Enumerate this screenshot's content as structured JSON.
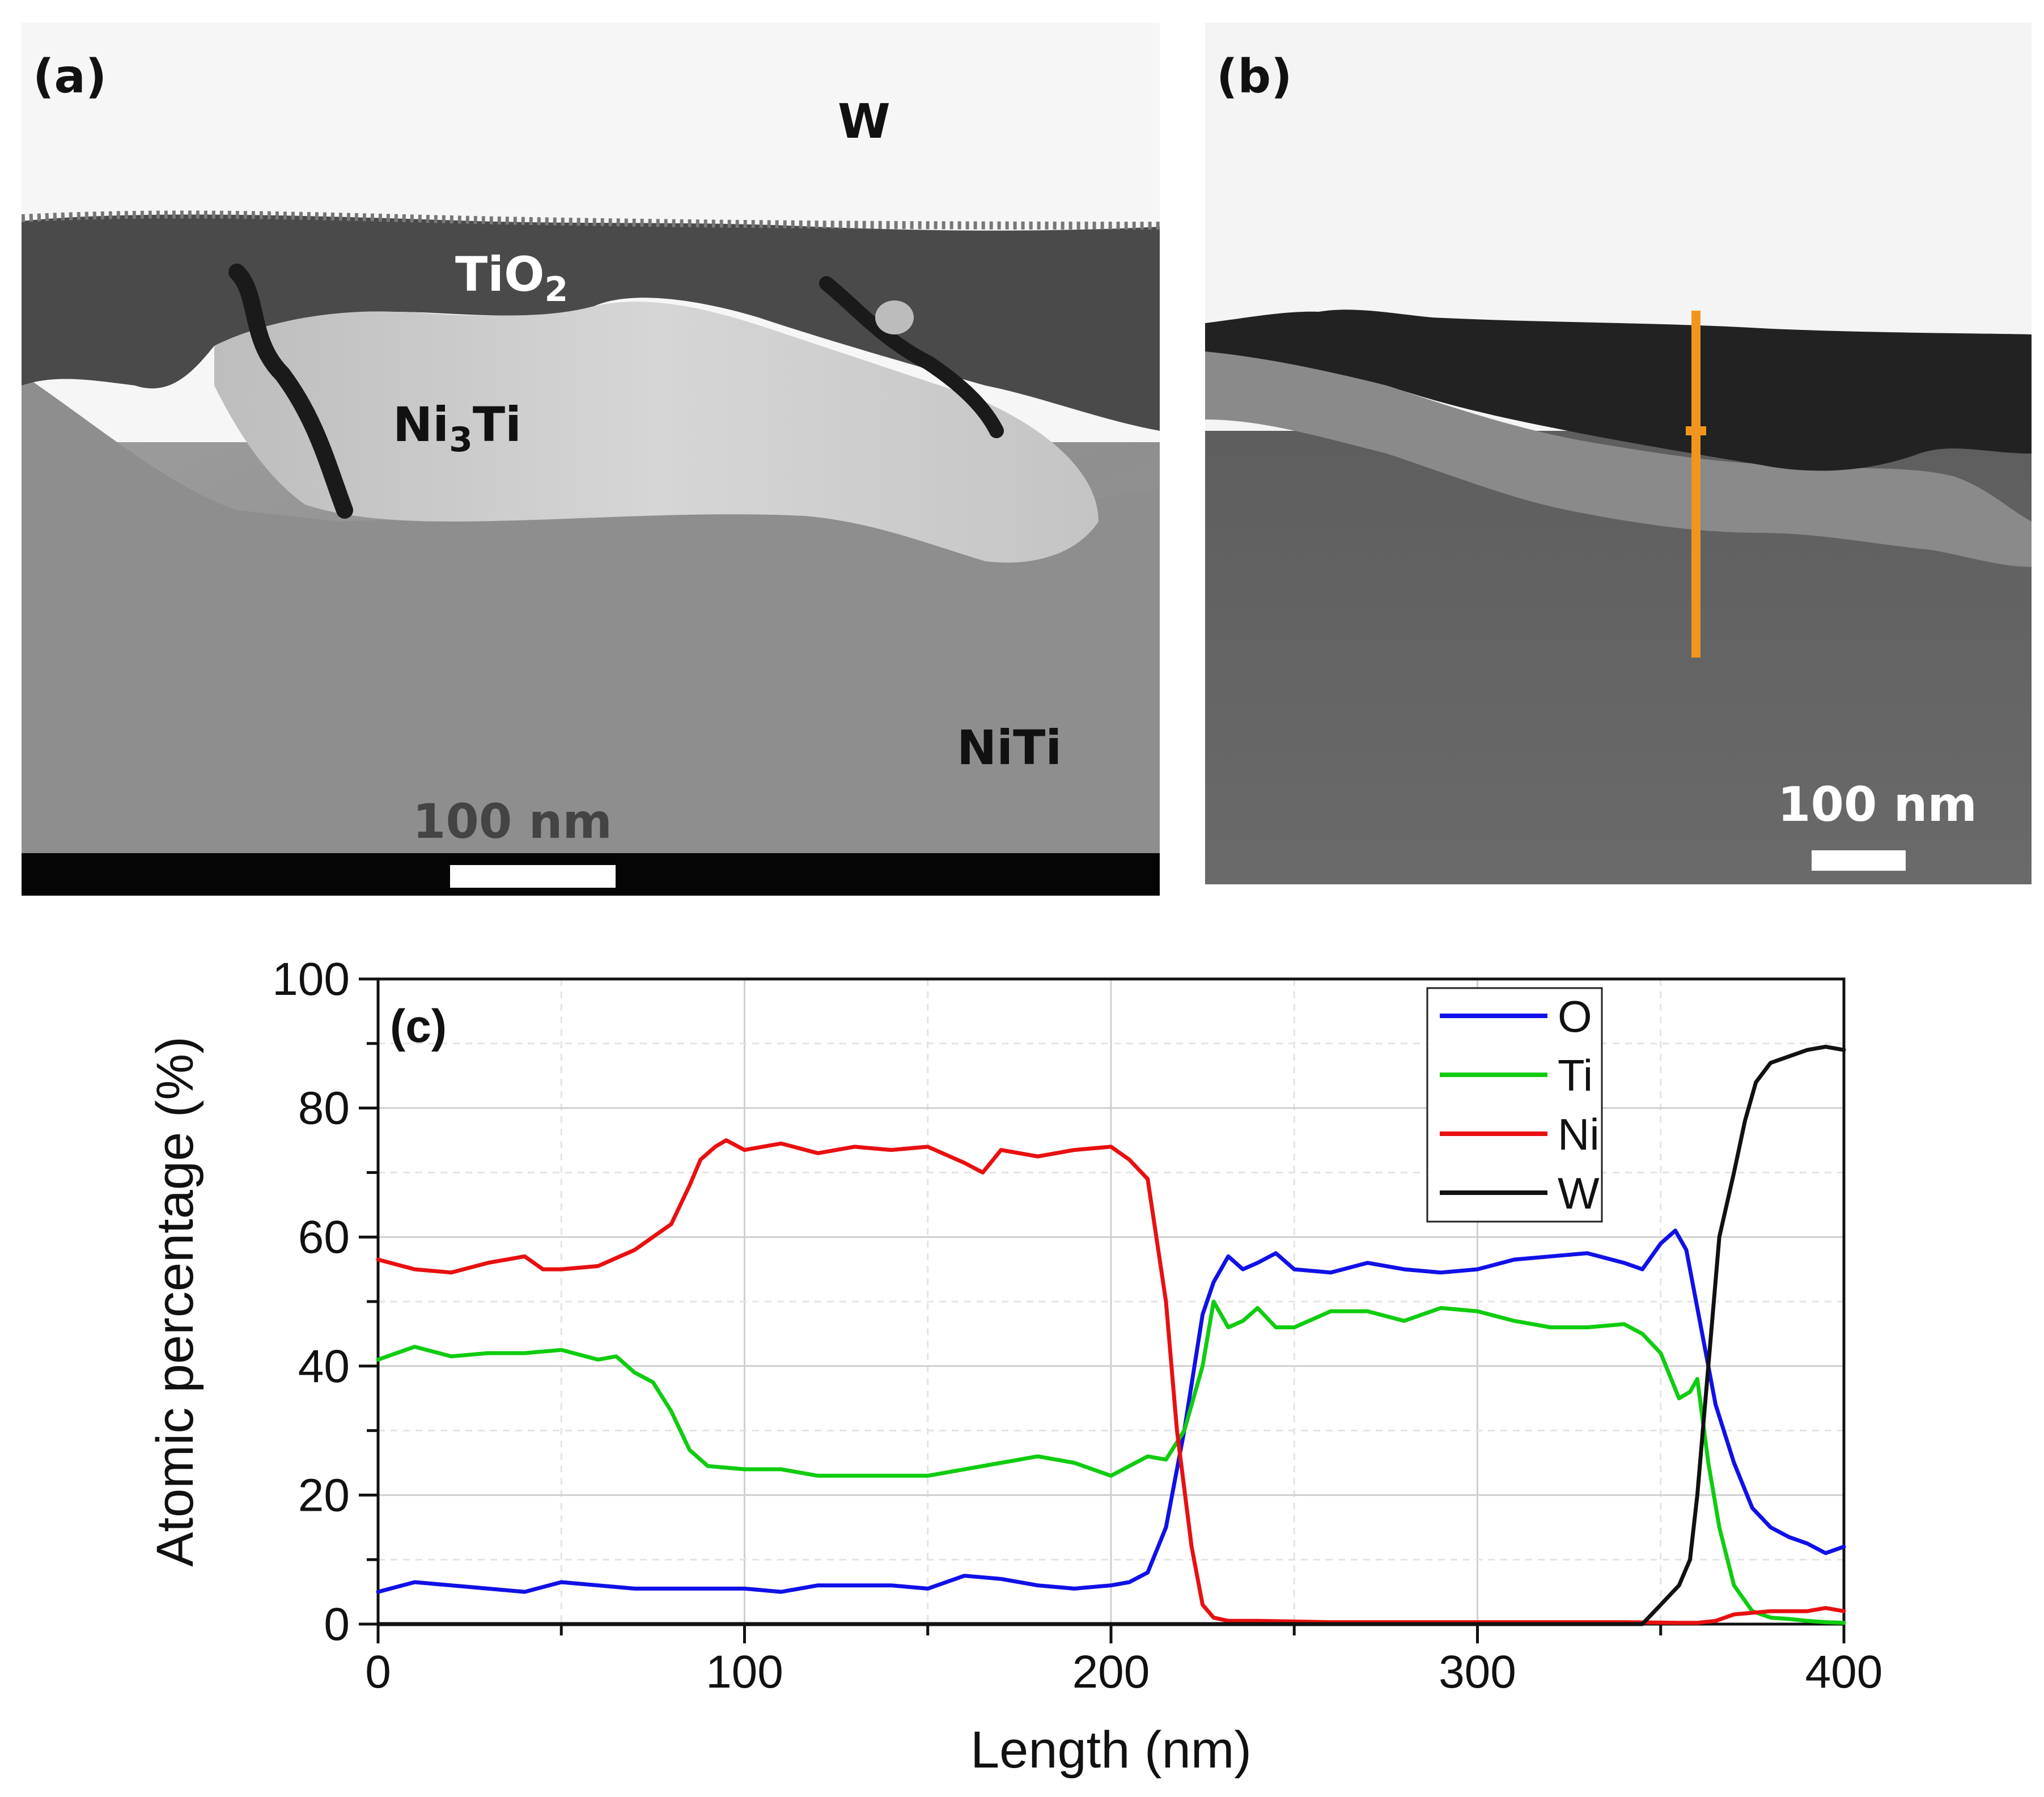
{
  "panel_a": {
    "label": "(a)",
    "layer_w": "W",
    "layer_tio2_main": "TiO",
    "layer_tio2_sub": "2",
    "layer_ni3ti_pre": "Ni",
    "layer_ni3ti_sub": "3",
    "layer_ni3ti_post": "Ti",
    "substrate": "NiTi",
    "scale_label": "100 nm"
  },
  "panel_b": {
    "label": "(b)",
    "scale_label": "100 nm",
    "line_color": "#f0961e"
  },
  "chart_data": {
    "type": "line",
    "panel_label": "(c)",
    "xlabel": "Length (nm)",
    "ylabel": "Atomic percentage (%)",
    "xlim": [
      0,
      400
    ],
    "ylim": [
      0,
      100
    ],
    "xticks": [
      0,
      100,
      200,
      300,
      400
    ],
    "yticks": [
      0,
      20,
      40,
      60,
      80,
      100
    ],
    "grid": true,
    "legend_position": "top-right",
    "series": [
      {
        "name": "O",
        "color": "#1010e8",
        "x": [
          0,
          10,
          20,
          30,
          40,
          50,
          60,
          70,
          80,
          90,
          100,
          110,
          120,
          130,
          140,
          150,
          160,
          170,
          180,
          190,
          200,
          205,
          210,
          215,
          220,
          225,
          228,
          232,
          236,
          240,
          245,
          250,
          260,
          270,
          280,
          290,
          300,
          310,
          320,
          330,
          340,
          345,
          350,
          354,
          357,
          360,
          365,
          370,
          375,
          380,
          385,
          390,
          395,
          400
        ],
        "y": [
          5,
          6.5,
          6,
          5.5,
          5,
          6.5,
          6,
          5.5,
          5.5,
          5.5,
          5.5,
          5,
          6,
          6,
          6,
          5.5,
          7.5,
          7,
          6,
          5.5,
          6,
          6.5,
          8,
          15,
          30,
          48,
          53,
          57,
          55,
          56,
          57.5,
          55,
          54.5,
          56,
          55,
          54.5,
          55,
          56.5,
          57,
          57.5,
          56,
          55,
          59,
          61,
          58,
          49,
          34,
          25,
          18,
          15,
          13.5,
          12.5,
          11,
          12
        ]
      },
      {
        "name": "Ti",
        "color": "#10cc10",
        "x": [
          0,
          10,
          20,
          30,
          40,
          50,
          60,
          65,
          70,
          75,
          80,
          85,
          90,
          100,
          110,
          120,
          130,
          140,
          150,
          160,
          170,
          180,
          190,
          200,
          205,
          210,
          215,
          220,
          225,
          228,
          232,
          236,
          240,
          245,
          250,
          260,
          270,
          280,
          290,
          300,
          310,
          320,
          330,
          340,
          345,
          350,
          355,
          358,
          360,
          363,
          366,
          370,
          375,
          380,
          385,
          390,
          395,
          400
        ],
        "y": [
          41,
          43,
          41.5,
          42,
          42,
          42.5,
          41,
          41.5,
          39,
          37.5,
          33,
          27,
          24.5,
          24,
          24,
          23,
          23,
          23,
          23,
          24,
          25,
          26,
          25,
          23,
          24.5,
          26,
          25.5,
          30,
          40,
          50,
          46,
          47,
          49,
          46,
          46,
          48.5,
          48.5,
          47,
          49,
          48.5,
          47,
          46,
          46,
          46.5,
          45,
          42,
          35,
          36,
          38,
          25,
          15,
          6,
          2,
          1,
          0.8,
          0.5,
          0.3,
          0.2
        ]
      },
      {
        "name": "Ni",
        "color": "#e81010",
        "x": [
          0,
          10,
          20,
          30,
          40,
          45,
          50,
          60,
          70,
          80,
          85,
          88,
          92,
          95,
          100,
          110,
          120,
          130,
          140,
          150,
          160,
          165,
          170,
          180,
          190,
          200,
          205,
          210,
          215,
          218,
          222,
          225,
          228,
          232,
          240,
          260,
          280,
          300,
          320,
          340,
          355,
          360,
          365,
          370,
          380,
          390,
          395,
          400
        ],
        "y": [
          56.5,
          55,
          54.5,
          56,
          57,
          55,
          55,
          55.5,
          58,
          62,
          68,
          72,
          74,
          75,
          73.5,
          74.5,
          73,
          74,
          73.5,
          74,
          71.5,
          70,
          73.5,
          72.5,
          73.5,
          74,
          72,
          69,
          50,
          30,
          12,
          3,
          1,
          0.5,
          0.5,
          0.3,
          0.3,
          0.3,
          0.3,
          0.3,
          0.2,
          0.2,
          0.5,
          1.5,
          2,
          2,
          2.5,
          2
        ]
      },
      {
        "name": "W",
        "color": "#111111",
        "x": [
          0,
          100,
          200,
          300,
          345,
          350,
          355,
          358,
          360,
          363,
          366,
          370,
          373,
          376,
          380,
          385,
          390,
          395,
          400
        ],
        "y": [
          0,
          0,
          0,
          0,
          0,
          3,
          6,
          10,
          20,
          40,
          60,
          70,
          78,
          84,
          87,
          88,
          89,
          89.5,
          89
        ]
      }
    ]
  }
}
